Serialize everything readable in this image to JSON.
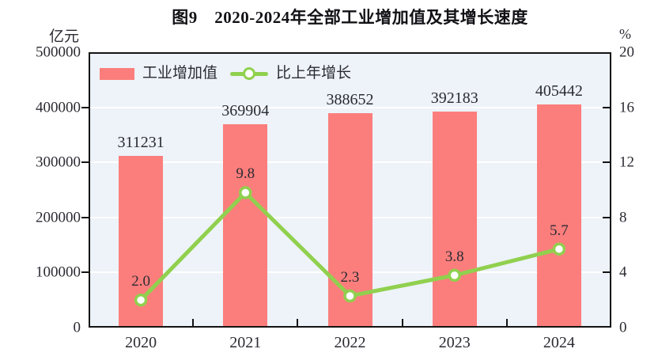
{
  "chart_data": {
    "type": "bar+line",
    "title": "图9　2020-2024年全部工业增加值及其增长速度",
    "categories": [
      "2020",
      "2021",
      "2022",
      "2023",
      "2024"
    ],
    "series": [
      {
        "name": "工业增加值",
        "type": "bar",
        "axis": "left",
        "values": [
          311231,
          369904,
          388652,
          392183,
          405442
        ],
        "labels": [
          "311231",
          "369904",
          "388652",
          "392183",
          "405442"
        ],
        "color": "#fb7e7c"
      },
      {
        "name": "比上年增长",
        "type": "line",
        "axis": "right",
        "values": [
          2.0,
          9.8,
          2.3,
          3.8,
          5.7
        ],
        "labels": [
          "2.0",
          "9.8",
          "2.3",
          "3.8",
          "5.7"
        ],
        "color": "#90d04e",
        "marker": "circle-white-fill"
      }
    ],
    "left_axis": {
      "label": "亿元",
      "min": 0,
      "max": 500000,
      "step": 100000,
      "tick_labels": [
        "0",
        "100000",
        "200000",
        "300000",
        "400000",
        "500000"
      ]
    },
    "right_axis": {
      "label": "%",
      "min": 0,
      "max": 20,
      "step": 4,
      "tick_labels": [
        "0",
        "4",
        "8",
        "12",
        "16",
        "20"
      ]
    },
    "grid": true,
    "legend_position": "top-left-inside",
    "colors": {
      "bar": "#fb7e7c",
      "line": "#90d04e",
      "plot_background": "#edf3f8",
      "gridline": "#ffffff",
      "axis": "#141414",
      "text": "#2b2b33"
    }
  }
}
